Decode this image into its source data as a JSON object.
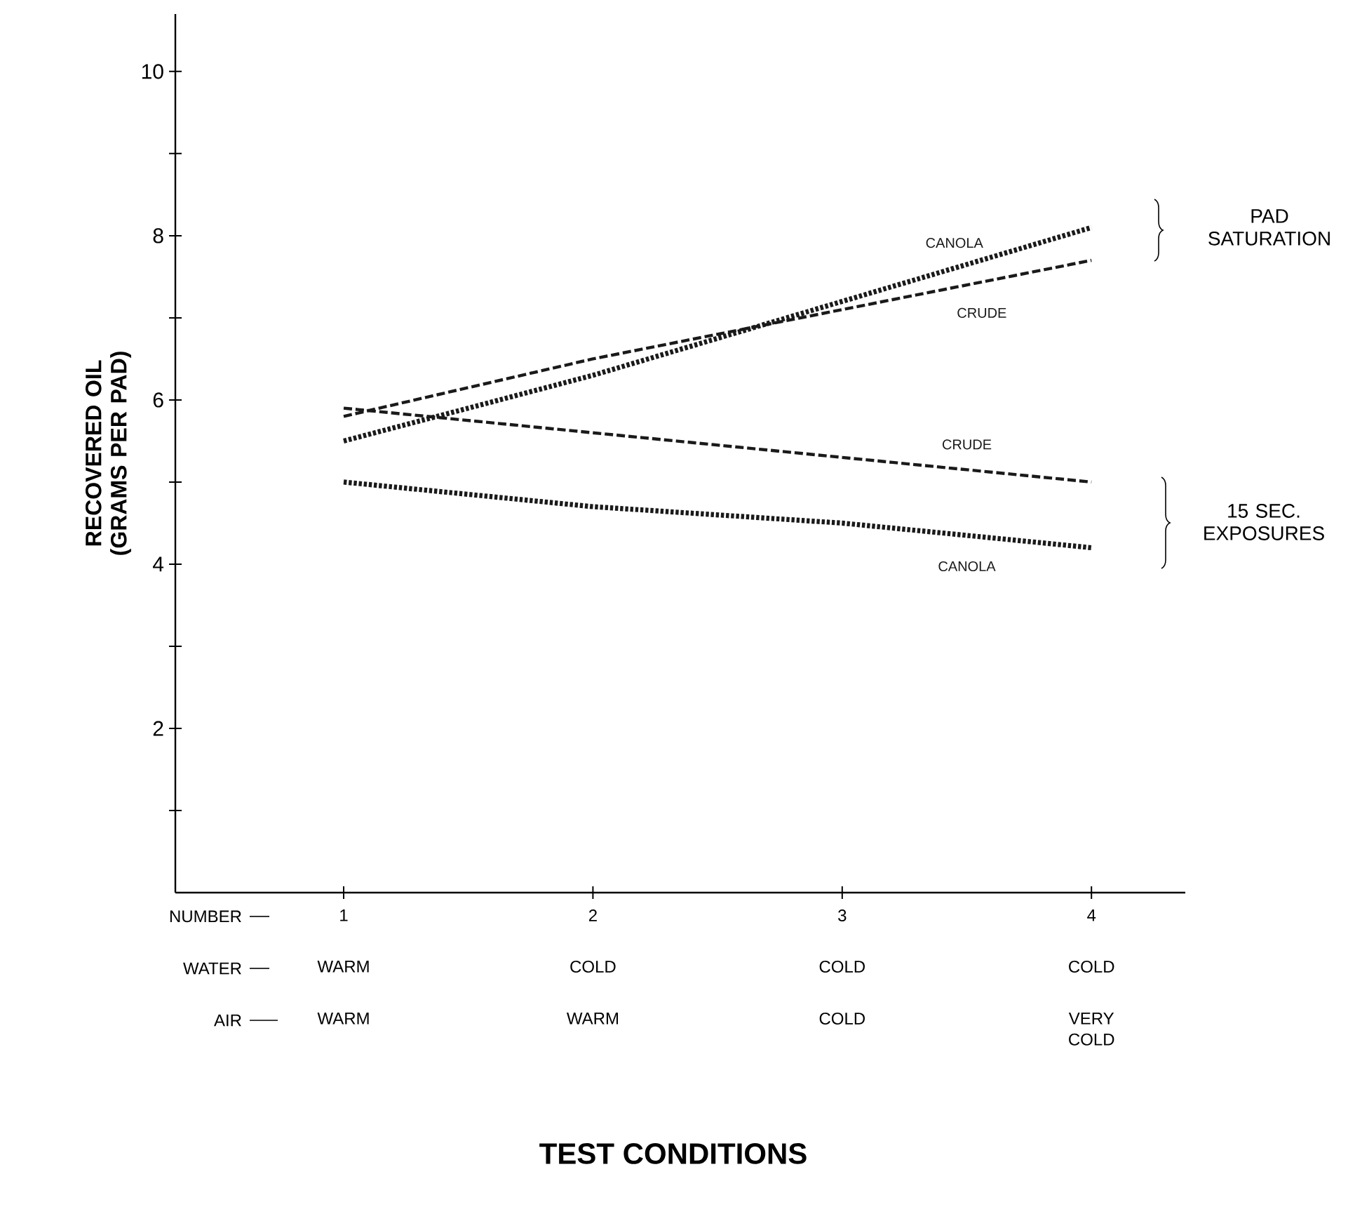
{
  "chart_data": {
    "type": "line",
    "ylabel": "**RECOVERED OIL** (GRAMS PER PAD)",
    "categories": [
      "1",
      "2",
      "3",
      "4"
    ],
    "series": [
      {
        "name": "CANOLA",
        "color": "#1a1a1a",
        "line_style": "dotted",
        "values": [
          5.5,
          6.3,
          7.2,
          8.1
        ]
      },
      {
        "name": "CRUDE",
        "color": "#1a1a1a",
        "line_style": "dashed",
        "values": [
          5.8,
          6.5,
          7.1,
          7.7
        ]
      },
      {
        "name": "CRUDE",
        "color": "#1a1a1a",
        "line_style": "dashed",
        "values": [
          5.9,
          5.6,
          5.3,
          5.0
        ]
      },
      {
        "name": "CANOLA",
        "color": "#1a1a1a",
        "line_style": "dotted",
        "values": [
          5.0,
          4.7,
          4.5,
          4.2
        ]
      }
    ],
    "ylim": [
      0,
      10.7
    ],
    "yticks": [
      {
        "value": 1,
        "label": null
      },
      2,
      {
        "value": 3,
        "label": null
      },
      4,
      {
        "value": 5,
        "label": null
      },
      6,
      {
        "value": 7,
        "label": null
      },
      8,
      {
        "value": 9,
        "label": null
      },
      10
    ],
    "annotations": [
      "NUMBER",
      "WATER",
      "AIR",
      "WARM",
      "COLD",
      "COLD",
      "COLD",
      "WARM",
      "WARM",
      "COLD",
      "VERY COLD",
      "PAD SATURATION",
      "15 SEC. EXPOSURES",
      "TEST CONDITIONS"
    ]
  }
}
